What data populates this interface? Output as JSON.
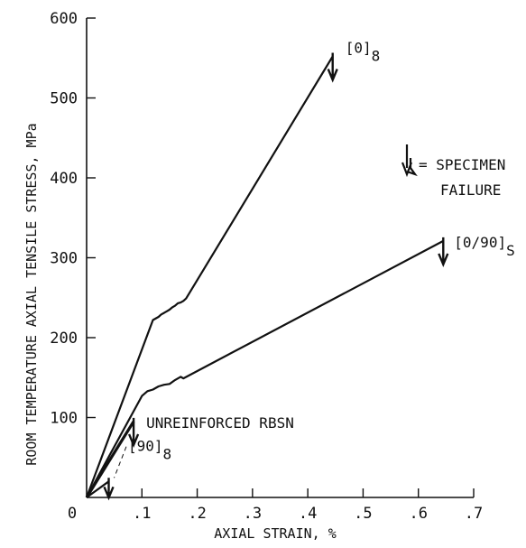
{
  "chart_data": {
    "type": "line",
    "xlabel": "AXIAL STRAIN, %",
    "ylabel": "ROOM TEMPERATURE AXIAL TENSILE STRESS, MPa",
    "xlim": [
      0,
      0.7
    ],
    "ylim": [
      0,
      600
    ],
    "x_ticks": [
      {
        "value": 0,
        "label": "0"
      },
      {
        "value": 0.1,
        "label": ".1"
      },
      {
        "value": 0.2,
        "label": ".2"
      },
      {
        "value": 0.3,
        "label": ".3"
      },
      {
        "value": 0.4,
        "label": ".4"
      },
      {
        "value": 0.5,
        "label": ".5"
      },
      {
        "value": 0.6,
        "label": ".6"
      },
      {
        "value": 0.7,
        "label": ".7"
      }
    ],
    "y_ticks": [
      {
        "value": 100,
        "label": "100"
      },
      {
        "value": 200,
        "label": "200"
      },
      {
        "value": 300,
        "label": "300"
      },
      {
        "value": 400,
        "label": "400"
      },
      {
        "value": 500,
        "label": "500"
      },
      {
        "value": 600,
        "label": "600"
      }
    ],
    "grid": false,
    "legend": {
      "position": "right",
      "text_line1": "= SPECIMEN",
      "text_line2": "FAILURE"
    },
    "series": [
      {
        "label_main": "[0]",
        "label_sub": "8",
        "failure_x": 0.445,
        "points": [
          [
            0,
            0
          ],
          [
            0.12,
            222
          ],
          [
            0.13,
            226
          ],
          [
            0.135,
            229
          ],
          [
            0.14,
            231
          ],
          [
            0.145,
            233
          ],
          [
            0.15,
            235
          ],
          [
            0.155,
            238
          ],
          [
            0.16,
            240
          ],
          [
            0.165,
            243
          ],
          [
            0.17,
            244
          ],
          [
            0.175,
            246
          ],
          [
            0.18,
            249
          ],
          [
            0.445,
            552
          ]
        ]
      },
      {
        "label_main": "[0/90]",
        "label_sub": "S",
        "failure_x": 0.645,
        "points": [
          [
            0,
            0
          ],
          [
            0.1,
            127
          ],
          [
            0.11,
            133
          ],
          [
            0.12,
            135
          ],
          [
            0.13,
            139
          ],
          [
            0.14,
            141
          ],
          [
            0.15,
            142
          ],
          [
            0.16,
            147
          ],
          [
            0.17,
            151
          ],
          [
            0.175,
            149
          ],
          [
            0.645,
            321
          ]
        ]
      },
      {
        "label_main": "UNREINFORCED RBSN",
        "label_sub": "",
        "failure_x": 0.085,
        "points": [
          [
            0,
            0
          ],
          [
            0.085,
            95
          ]
        ]
      },
      {
        "label_main": "[90]",
        "label_sub": "8",
        "failure_x": 0.04,
        "points": [
          [
            0,
            0
          ],
          [
            0.04,
            20
          ]
        ]
      }
    ]
  }
}
